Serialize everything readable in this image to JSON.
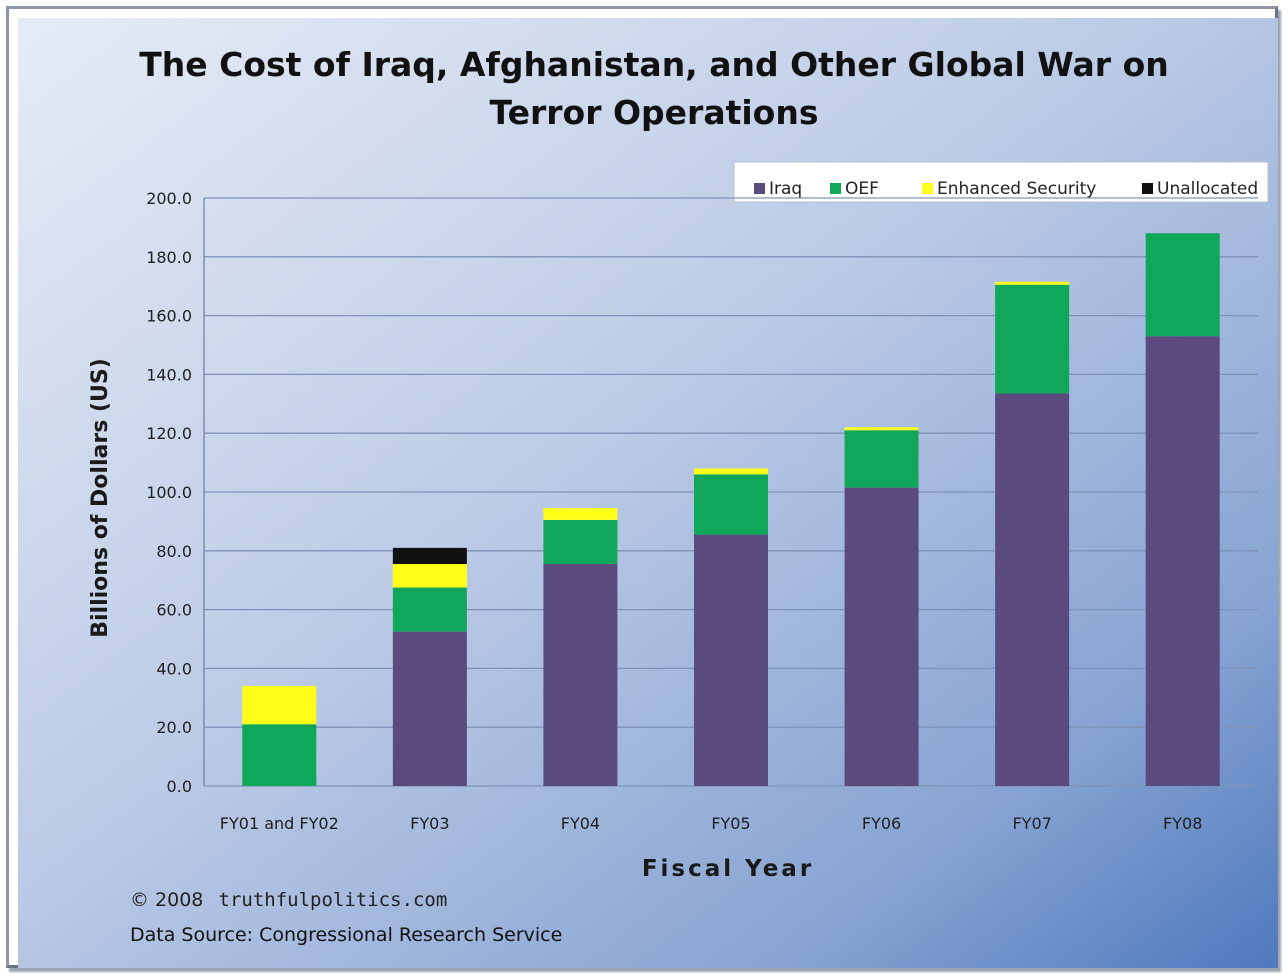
{
  "chart_data": {
    "type": "bar",
    "stacked": true,
    "title_lines": [
      "The Cost of Iraq, Afghanistan, and Other Global War on",
      "Terror Operations"
    ],
    "xlabel": "Fiscal Year",
    "ylabel": "Billions of Dollars (US)",
    "ylim": [
      0,
      200
    ],
    "yticks": [
      "0.0",
      "20.0",
      "40.0",
      "60.0",
      "80.0",
      "100.0",
      "120.0",
      "140.0",
      "160.0",
      "180.0",
      "200.0"
    ],
    "grid": true,
    "legend_position": "top-right",
    "categories": [
      "FY01 and FY02",
      "FY03",
      "FY04",
      "FY05",
      "FY06",
      "FY07",
      "FY08"
    ],
    "series": [
      {
        "name": "Iraq",
        "color": "#5b4a7e",
        "values": [
          0,
          52.5,
          75.5,
          85.5,
          101.5,
          133.5,
          153.0
        ]
      },
      {
        "name": "OEF",
        "color": "#11a75a",
        "values": [
          21.0,
          15.0,
          15.0,
          20.5,
          19.5,
          37.0,
          35.0
        ]
      },
      {
        "name": "Enhanced Security",
        "color": "#ffff1a",
        "values": [
          13.0,
          8.0,
          4.0,
          2.0,
          1.0,
          1.0,
          0
        ]
      },
      {
        "name": "Unallocated",
        "color": "#111111",
        "values": [
          0,
          5.5,
          0,
          0,
          0,
          0,
          0
        ]
      }
    ]
  },
  "footer": {
    "copyright_symbol": "© 2008",
    "copyright_site": "truthfulpolitics.com",
    "source": "Data Source:  Congressional Research Service"
  },
  "colors": {
    "background_top_left": "#d9e2f1",
    "background_bottom_right": "#5f86c4",
    "gridline": "#7f93b8"
  }
}
